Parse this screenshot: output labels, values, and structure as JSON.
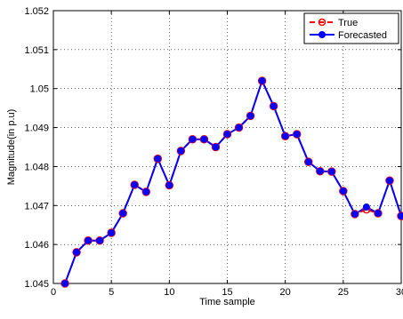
{
  "chart_data": {
    "type": "line",
    "title": "",
    "xlabel": "Time sample",
    "ylabel": "Magnitude(in p.u)",
    "xlim": [
      0,
      30
    ],
    "ylim": [
      1.045,
      1.052
    ],
    "xticks": [
      0,
      5,
      10,
      15,
      20,
      25,
      30
    ],
    "xtick_labels": [
      "0",
      "5",
      "10",
      "15",
      "20",
      "25",
      "30"
    ],
    "yticks": [
      1.045,
      1.046,
      1.047,
      1.048,
      1.049,
      1.05,
      1.051,
      1.052
    ],
    "ytick_labels": [
      "1.045",
      "1.046",
      "1.047",
      "1.048",
      "1.049",
      "1.05",
      "1.051",
      "1.052"
    ],
    "grid": true,
    "legend_position": "top-right",
    "x": [
      1,
      2,
      3,
      4,
      5,
      6,
      7,
      8,
      9,
      10,
      11,
      12,
      13,
      14,
      15,
      16,
      17,
      18,
      19,
      20,
      21,
      22,
      23,
      24,
      25,
      26,
      27,
      28,
      29,
      30
    ],
    "series": [
      {
        "name": "True",
        "color": "#ff0000",
        "line_style": "dashed",
        "marker": "open-circle",
        "values": [
          1.045,
          1.0458,
          1.0461,
          1.0461,
          1.0463,
          1.0468,
          1.04753,
          1.04735,
          1.0482,
          1.04752,
          1.0484,
          1.0487,
          1.0487,
          1.0485,
          1.04883,
          1.049,
          1.0493,
          1.0502,
          1.04955,
          1.04878,
          1.04883,
          1.04812,
          1.04788,
          1.04787,
          1.04737,
          1.04678,
          1.0469,
          1.0468,
          1.04764,
          1.04673
        ]
      },
      {
        "name": "Forecasted",
        "color": "#0000ff",
        "line_style": "solid",
        "marker": "filled-circle",
        "values": [
          1.045,
          1.0458,
          1.0461,
          1.0461,
          1.0463,
          1.0468,
          1.04753,
          1.04735,
          1.0482,
          1.04752,
          1.0484,
          1.0487,
          1.0487,
          1.0485,
          1.04883,
          1.049,
          1.0493,
          1.0502,
          1.04955,
          1.04878,
          1.04883,
          1.04812,
          1.04788,
          1.04787,
          1.04737,
          1.04678,
          1.04696,
          1.0468,
          1.04764,
          1.04673
        ]
      }
    ]
  }
}
